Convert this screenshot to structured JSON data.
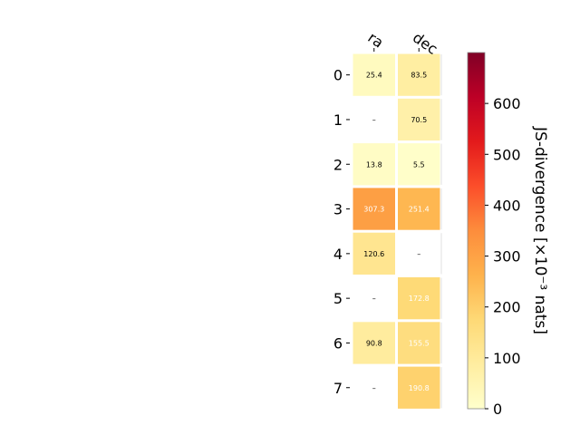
{
  "chart_data": {
    "type": "heatmap",
    "columns": [
      "ra",
      "dec"
    ],
    "rows": [
      "0",
      "1",
      "2",
      "3",
      "4",
      "5",
      "6",
      "7"
    ],
    "values": [
      [
        25.4,
        83.5
      ],
      [
        null,
        70.5
      ],
      [
        13.8,
        5.5
      ],
      [
        307.3,
        251.4
      ],
      [
        120.6,
        null
      ],
      [
        null,
        172.8
      ],
      [
        90.8,
        155.5
      ],
      [
        null,
        190.8
      ]
    ],
    "cell_labels": [
      [
        "25.4",
        "83.5"
      ],
      [
        "–",
        "70.5"
      ],
      [
        "13.8",
        "5.5"
      ],
      [
        "307.3",
        "251.4"
      ],
      [
        "120.6",
        "–"
      ],
      [
        "–",
        "172.8"
      ],
      [
        "90.8",
        "155.5"
      ],
      [
        "–",
        "190.8"
      ]
    ],
    "missing_label": "–",
    "colorbar": {
      "label": "JS-divergence [×10⁻³ nats]",
      "range": [
        0,
        700
      ],
      "ticks": [
        "0",
        "100",
        "200",
        "300",
        "400",
        "500",
        "600"
      ],
      "colormap": "YlOrRd"
    },
    "grid": false,
    "legend": "none"
  }
}
